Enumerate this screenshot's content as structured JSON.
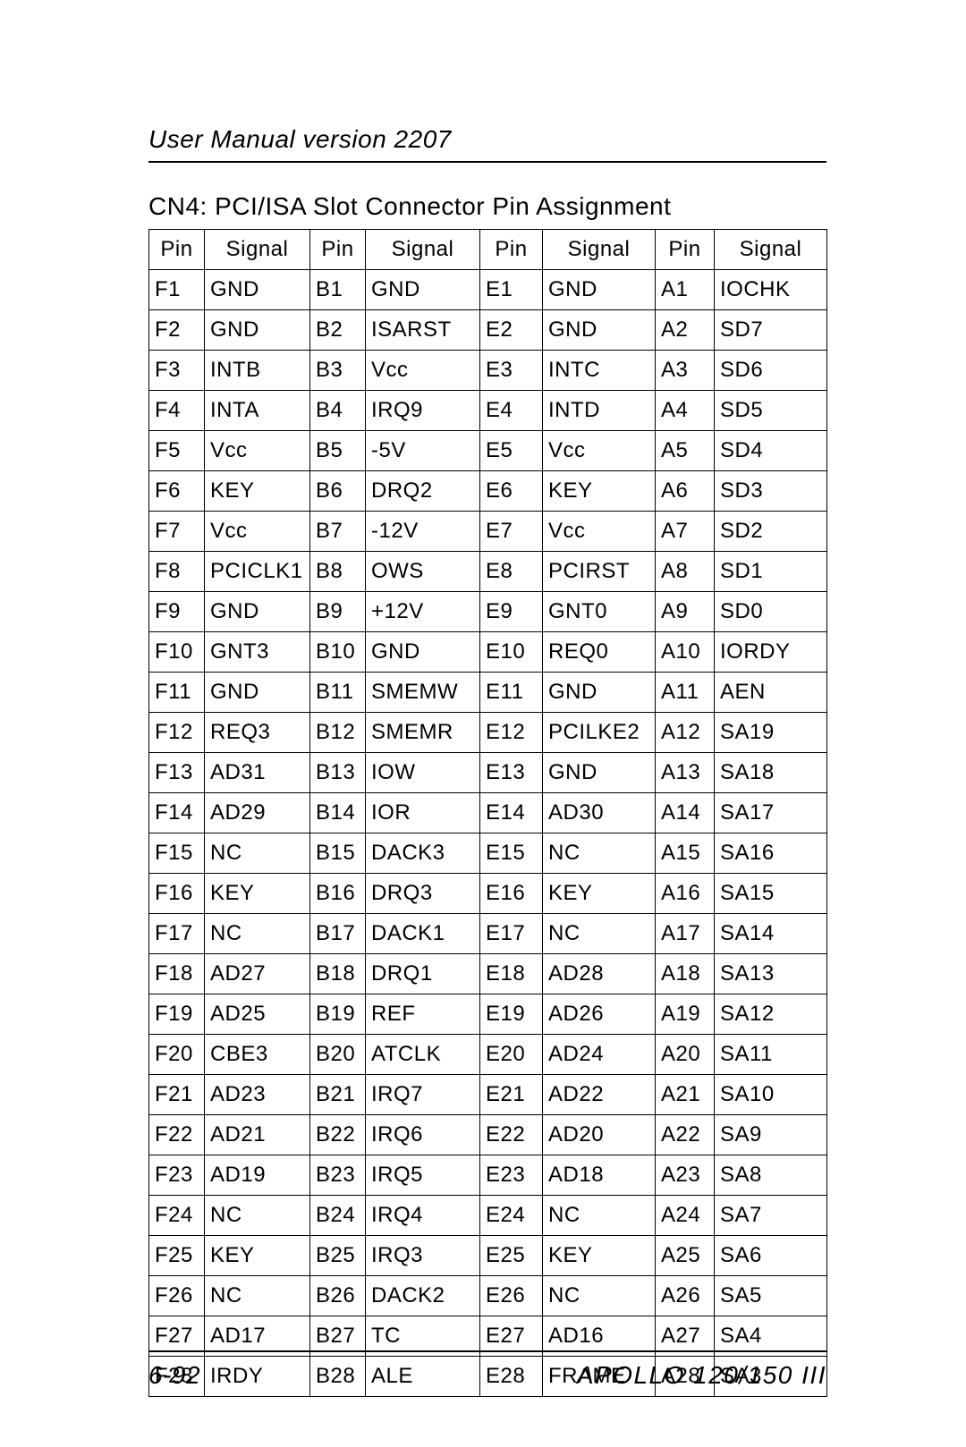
{
  "header": {
    "text": "User Manual version 2207"
  },
  "section_title": "CN4: PCI/ISA Slot Connector Pin Assignment",
  "table": {
    "type": "table",
    "background_color": "#ffffff",
    "border_color": "#000000",
    "font_size_pt": 18,
    "columns": [
      "Pin",
      "Signal",
      "Pin",
      "Signal",
      "Pin",
      "Signal",
      "Pin",
      "Signal"
    ],
    "rows": [
      [
        "F1",
        "GND",
        "B1",
        "GND",
        "E1",
        "GND",
        "A1",
        "IOCHK"
      ],
      [
        "F2",
        "GND",
        "B2",
        "ISARST",
        "E2",
        "GND",
        "A2",
        "SD7"
      ],
      [
        "F3",
        "INTB",
        "B3",
        "Vcc",
        "E3",
        "INTC",
        "A3",
        "SD6"
      ],
      [
        "F4",
        "INTA",
        "B4",
        "IRQ9",
        "E4",
        "INTD",
        "A4",
        "SD5"
      ],
      [
        "F5",
        "Vcc",
        "B5",
        "-5V",
        "E5",
        "Vcc",
        "A5",
        "SD4"
      ],
      [
        "F6",
        "KEY",
        "B6",
        "DRQ2",
        "E6",
        "KEY",
        "A6",
        "SD3"
      ],
      [
        "F7",
        "Vcc",
        "B7",
        "-12V",
        "E7",
        "Vcc",
        "A7",
        "SD2"
      ],
      [
        "F8",
        "PCICLK1",
        "B8",
        "OWS",
        "E8",
        "PCIRST",
        "A8",
        "SD1"
      ],
      [
        "F9",
        "GND",
        "B9",
        "+12V",
        "E9",
        "GNT0",
        "A9",
        "SD0"
      ],
      [
        "F10",
        "GNT3",
        "B10",
        "GND",
        "E10",
        "REQ0",
        "A10",
        "IORDY"
      ],
      [
        "F11",
        "GND",
        "B11",
        "SMEMW",
        "E11",
        "GND",
        "A11",
        "AEN"
      ],
      [
        "F12",
        "REQ3",
        "B12",
        "SMEMR",
        "E12",
        "PCILKE2",
        "A12",
        "SA19"
      ],
      [
        "F13",
        "AD31",
        "B13",
        "IOW",
        "E13",
        "GND",
        "A13",
        "SA18"
      ],
      [
        "F14",
        "AD29",
        "B14",
        "IOR",
        "E14",
        "AD30",
        "A14",
        "SA17"
      ],
      [
        "F15",
        "NC",
        "B15",
        "DACK3",
        "E15",
        "NC",
        "A15",
        "SA16"
      ],
      [
        "F16",
        "KEY",
        "B16",
        "DRQ3",
        "E16",
        "KEY",
        "A16",
        "SA15"
      ],
      [
        "F17",
        "NC",
        "B17",
        "DACK1",
        "E17",
        "NC",
        "A17",
        "SA14"
      ],
      [
        "F18",
        "AD27",
        "B18",
        "DRQ1",
        "E18",
        "AD28",
        "A18",
        "SA13"
      ],
      [
        "F19",
        "AD25",
        "B19",
        "REF",
        "E19",
        "AD26",
        "A19",
        "SA12"
      ],
      [
        "F20",
        "CBE3",
        "B20",
        "ATCLK",
        "E20",
        "AD24",
        "A20",
        "SA11"
      ],
      [
        "F21",
        "AD23",
        "B21",
        "IRQ7",
        "E21",
        "AD22",
        "A21",
        "SA10"
      ],
      [
        "F22",
        "AD21",
        "B22",
        "IRQ6",
        "E22",
        "AD20",
        "A22",
        "SA9"
      ],
      [
        "F23",
        "AD19",
        "B23",
        "IRQ5",
        "E23",
        "AD18",
        "A23",
        "SA8"
      ],
      [
        "F24",
        "NC",
        "B24",
        "IRQ4",
        "E24",
        "NC",
        "A24",
        "SA7"
      ],
      [
        "F25",
        "KEY",
        "B25",
        "IRQ3",
        "E25",
        "KEY",
        "A25",
        "SA6"
      ],
      [
        "F26",
        "NC",
        "B26",
        "DACK2",
        "E26",
        "NC",
        "A26",
        "SA5"
      ],
      [
        "F27",
        "AD17",
        "B27",
        "TC",
        "E27",
        "AD16",
        "A27",
        "SA4"
      ],
      [
        "F28",
        "IRDY",
        "B28",
        "ALE",
        "E28",
        "FRAME",
        "A28",
        "SA3"
      ]
    ]
  },
  "footer": {
    "left": "6-92",
    "right": "APOLLO 120/150 III"
  },
  "style": {
    "page_bg": "#ffffff",
    "text_color": "#000000",
    "rule_color": "#000000",
    "header_font_style": "italic",
    "header_font_size_pt": 21,
    "section_title_font_size_pt": 21,
    "footer_font_style": "italic",
    "footer_font_size_pt": 21
  }
}
